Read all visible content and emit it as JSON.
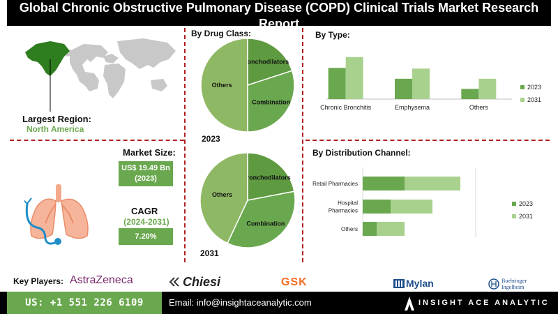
{
  "title": "Global Chronic Obstructive Pulmonary Disease (COPD) Clinical Trials Market Research Report",
  "region": {
    "label": "Largest Region:",
    "value": "North America"
  },
  "market_size": {
    "label": "Market Size:",
    "value": "US$ 19.49 Bn",
    "year": "(2023)"
  },
  "cagr": {
    "label": "CAGR",
    "period": "(2024-2031)",
    "value": "7.20%"
  },
  "key_players": {
    "label": "Key Players:",
    "names": [
      "AstraZeneca",
      "Chiesi",
      "GSK",
      "Mylan",
      "Boehringer",
      "Ingelheim"
    ]
  },
  "footer": {
    "phone": "US: +1 551 226 6109",
    "email": "Email: info@insightaceanalytic.com",
    "brand": "INSIGHT ACE ANALYTIC"
  },
  "colors": {
    "dark_green": "#6aa84f",
    "light_green": "#a9d18e",
    "mid_green": "#8fb864",
    "divider": "#b02020"
  },
  "chart_data": [
    {
      "type": "pie",
      "title": "By Drug Class:",
      "caption": "2023",
      "slices": [
        {
          "label": "Bronchodilators",
          "value": 20
        },
        {
          "label": "Combination",
          "value": 30
        },
        {
          "label": "Others",
          "value": 50
        }
      ]
    },
    {
      "type": "pie",
      "caption": "2031",
      "slices": [
        {
          "label": "Bronchodilators",
          "value": 22
        },
        {
          "label": "Combination",
          "value": 35
        },
        {
          "label": "Others",
          "value": 43
        }
      ]
    },
    {
      "type": "bar",
      "title": "By Type:",
      "categories": [
        "Chronic Bronchitis",
        "Emphysema",
        "Others"
      ],
      "series": [
        {
          "name": "2023",
          "values": [
            46,
            30,
            15
          ]
        },
        {
          "name": "2031",
          "values": [
            62,
            45,
            30
          ]
        }
      ],
      "ylim": [
        0,
        70
      ],
      "legend": "right"
    },
    {
      "type": "bar",
      "orientation": "horizontal",
      "stacked": true,
      "title": "By Distribution Channel:",
      "categories": [
        "Retail Pharmacies",
        "Hospital Pharmacies",
        "Others"
      ],
      "series": [
        {
          "name": "2023",
          "values": [
            30,
            20,
            10
          ]
        },
        {
          "name": "2031",
          "values": [
            40,
            30,
            20
          ]
        }
      ],
      "xlim": [
        0,
        80
      ],
      "legend": "right"
    }
  ]
}
